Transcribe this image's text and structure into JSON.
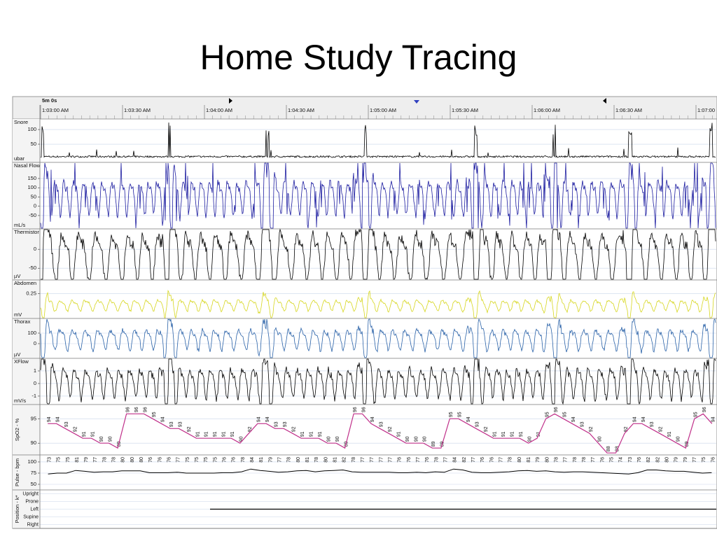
{
  "title": "Home Study Tracing",
  "window": "5m 0s",
  "times": [
    "1:03:00 AM",
    "1:03:30 AM",
    "1:04:00 AM",
    "1:04:30 AM",
    "1:05:00 AM",
    "1:05:30 AM",
    "1:06:00 AM",
    "1:06:30 AM",
    "1:07:00"
  ],
  "channels": [
    {
      "type": "snore",
      "name": "Snore",
      "unit": "ubar",
      "ylim": [
        -12,
        136
      ],
      "yticks": [
        100,
        50
      ],
      "color": "#000000"
    },
    {
      "type": "wave",
      "name": "Nasal Flow",
      "unit": "mL/s",
      "ylim": [
        -122,
        237
      ],
      "yticks": [
        150,
        100,
        50,
        0,
        -50
      ],
      "color": "#1c1ca0"
    },
    {
      "type": "wave",
      "name": "Thermistor",
      "unit": "µV",
      "ylim": [
        -81,
        54
      ],
      "yticks": [
        0,
        -50
      ],
      "color": "#000000"
    },
    {
      "type": "wave",
      "name": "Abdomen",
      "unit": "mV",
      "ylim": [
        -0.2,
        0.5
      ],
      "yticks": [
        0.25
      ],
      "color": "#d6d61e"
    },
    {
      "type": "wave",
      "name": "Thorax",
      "unit": "µV",
      "ylim": [
        -140,
        240
      ],
      "yticks": [
        100,
        0
      ],
      "color": "#2a62a8"
    },
    {
      "type": "wave",
      "name": "XFlow",
      "unit": "mV/s",
      "ylim": [
        -1.67,
        2
      ],
      "yticks": [
        1,
        0,
        -1
      ],
      "color": "#000000"
    },
    {
      "type": "spo2",
      "name": "SpO2 - %",
      "ylim": [
        87.6,
        97.9
      ],
      "yticks": [
        95,
        90
      ],
      "color": "#c0308a",
      "values": [
        94,
        94,
        93,
        92,
        91,
        91,
        90,
        90,
        89,
        96,
        96,
        96,
        95,
        94,
        93,
        93,
        92,
        91,
        91,
        91,
        91,
        91,
        90,
        92,
        94,
        94,
        93,
        93,
        92,
        91,
        91,
        91,
        90,
        90,
        89,
        96,
        96,
        94,
        93,
        92,
        91,
        90,
        90,
        90,
        89,
        89,
        95,
        95,
        94,
        93,
        92,
        91,
        91,
        91,
        91,
        90,
        91,
        95,
        96,
        95,
        94,
        93,
        92,
        90,
        88,
        88,
        92,
        94,
        94,
        93,
        92,
        91,
        90,
        89,
        95,
        96,
        94
      ]
    },
    {
      "type": "pulse",
      "name": "Pulse - bpm",
      "ylim": [
        37.5,
        115.6
      ],
      "yticks": [
        100,
        75,
        50
      ],
      "color": "#000000",
      "values": [
        73,
        75,
        75,
        81,
        79,
        77,
        78,
        78,
        80,
        80,
        80,
        76,
        76,
        76,
        77,
        75,
        75,
        75,
        75,
        76,
        76,
        78,
        84,
        81,
        79,
        77,
        78,
        80,
        81,
        78,
        80,
        81,
        82,
        78,
        77,
        77,
        77,
        77,
        76,
        76,
        77,
        76,
        78,
        77,
        84,
        82,
        77,
        76,
        76,
        77,
        78,
        80,
        81,
        79,
        80,
        78,
        77,
        78,
        78,
        77,
        76,
        75,
        74,
        73,
        76,
        82,
        82,
        80,
        79,
        79,
        77,
        75,
        76
      ]
    },
    {
      "type": "position",
      "name": "Position - k*",
      "categories": [
        "Upright",
        "Prone",
        "Left",
        "Supine",
        "Right"
      ],
      "color": "#000000"
    }
  ]
}
